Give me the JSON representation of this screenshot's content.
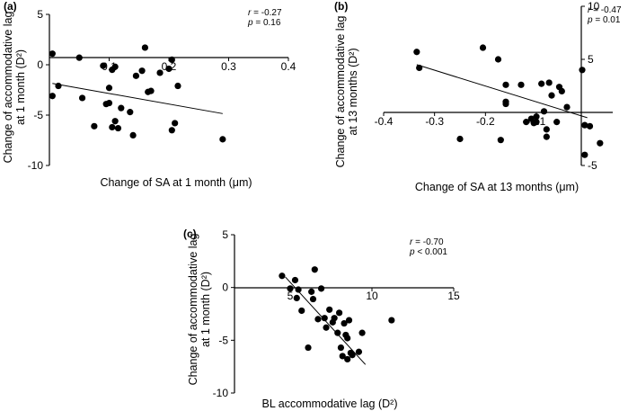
{
  "chart_data": [
    {
      "type": "scatter",
      "panel_label": "(a)",
      "xlabel": "Change of SA at 1 month (μm)",
      "ylabel_lines": [
        "Change of accommodative lag",
        "at 1 month (D²)"
      ],
      "xlim": [
        0,
        0.4
      ],
      "ylim": [
        -10,
        5
      ],
      "xticks": [
        0.1,
        0.2,
        0.3,
        0.4
      ],
      "xtick_labels": [
        "0.1",
        "0.2",
        "0.3",
        "0.4"
      ],
      "yticks": [
        5,
        0,
        -5,
        -10
      ],
      "ytick_labels": [
        "5",
        "0",
        "-5",
        "-10"
      ],
      "stats": {
        "r_label": "r",
        "r_value": " = -0.27",
        "p_label": "p",
        "p_value": " = 0.16"
      },
      "fit_line": [
        [
          0.005,
          -1.85
        ],
        [
          0.29,
          -4.85
        ]
      ],
      "points": [
        [
          0.005,
          1.1
        ],
        [
          0.005,
          -3.1
        ],
        [
          0.015,
          -2.1
        ],
        [
          0.05,
          0.7
        ],
        [
          0.055,
          -3.3
        ],
        [
          0.075,
          -6.1
        ],
        [
          0.09,
          -0.1
        ],
        [
          0.095,
          -3.9
        ],
        [
          0.1,
          -3.8
        ],
        [
          0.1,
          -2.3
        ],
        [
          0.105,
          -0.5
        ],
        [
          0.105,
          -6.2
        ],
        [
          0.11,
          -0.2
        ],
        [
          0.11,
          -5.6
        ],
        [
          0.115,
          -6.3
        ],
        [
          0.12,
          -4.3
        ],
        [
          0.135,
          -4.7
        ],
        [
          0.14,
          -7.0
        ],
        [
          0.145,
          -1.1
        ],
        [
          0.155,
          -0.6
        ],
        [
          0.16,
          1.7
        ],
        [
          0.165,
          -2.7
        ],
        [
          0.17,
          -2.6
        ],
        [
          0.185,
          -0.8
        ],
        [
          0.2,
          -0.4
        ],
        [
          0.205,
          0.5
        ],
        [
          0.205,
          -6.5
        ],
        [
          0.21,
          -5.8
        ],
        [
          0.215,
          -2.1
        ],
        [
          0.29,
          -7.4
        ]
      ]
    },
    {
      "type": "scatter",
      "panel_label": "(b)",
      "xlabel": "Change of SA at 13 months (μm)",
      "ylabel_lines": [
        "Change of accommodative lag",
        "at 13 months (D²)"
      ],
      "xlim": [
        -0.4,
        0.05
      ],
      "ylim": [
        -5,
        10
      ],
      "xticks": [
        -0.4,
        -0.3,
        -0.2,
        -0.1
      ],
      "xtick_labels": [
        "-0.4",
        "-0.3",
        "-0.2",
        "-0.1"
      ],
      "yticks": [
        10,
        5,
        -5
      ],
      "ytick_labels": [
        "10",
        "5",
        "-5"
      ],
      "stats": {
        "r_label": "r",
        "r_value": " = -0.47",
        "p_label": "p",
        "p_value": " = 0.01"
      },
      "fit_line": [
        [
          -0.335,
          4.5
        ],
        [
          0.0,
          -0.5
        ]
      ],
      "points": [
        [
          -0.335,
          5.7
        ],
        [
          -0.33,
          4.2
        ],
        [
          -0.25,
          -2.5
        ],
        [
          -0.205,
          6.1
        ],
        [
          -0.175,
          5.0
        ],
        [
          -0.17,
          -2.6
        ],
        [
          -0.16,
          0.8
        ],
        [
          -0.16,
          1.0
        ],
        [
          -0.16,
          2.6
        ],
        [
          -0.13,
          2.6
        ],
        [
          -0.12,
          -0.9
        ],
        [
          -0.11,
          -0.6
        ],
        [
          -0.105,
          -1.0
        ],
        [
          -0.1,
          -0.9
        ],
        [
          -0.1,
          -0.4
        ],
        [
          -0.09,
          2.7
        ],
        [
          -0.085,
          0.1
        ],
        [
          -0.08,
          -2.3
        ],
        [
          -0.08,
          -1.6
        ],
        [
          -0.075,
          2.8
        ],
        [
          -0.07,
          1.6
        ],
        [
          -0.06,
          -0.9
        ],
        [
          -0.055,
          2.4
        ],
        [
          -0.05,
          2.0
        ],
        [
          -0.04,
          0.5
        ],
        [
          -0.01,
          4.0
        ],
        [
          -0.005,
          -1.2
        ],
        [
          -0.005,
          -4.0
        ],
        [
          0.005,
          -1.3
        ],
        [
          0.025,
          -2.9
        ]
      ]
    },
    {
      "type": "scatter",
      "panel_label": "(c)",
      "xlabel": "BL accommodative lag (D²)",
      "ylabel_lines": [
        "Change of accommodative lag",
        "at 1 month  (D²)"
      ],
      "xlim": [
        0,
        15
      ],
      "ylim": [
        -10,
        5
      ],
      "xticks": [
        5,
        10,
        15
      ],
      "xtick_labels": [
        "5",
        "10",
        "15"
      ],
      "yticks": [
        5,
        0,
        -5,
        -10
      ],
      "ytick_labels": [
        "5",
        "0",
        "-5",
        "-10"
      ],
      "stats": {
        "r_label": "r",
        "r_value": " = -0.70",
        "p_label": "p",
        "p_value": " < 0.001"
      },
      "fit_line": [
        [
          4.7,
          1.0
        ],
        [
          9.6,
          -7.3
        ]
      ],
      "points": [
        [
          4.5,
          1.1
        ],
        [
          5.0,
          -0.1
        ],
        [
          5.3,
          0.7
        ],
        [
          5.4,
          -1.0
        ],
        [
          5.5,
          -0.2
        ],
        [
          5.7,
          -2.2
        ],
        [
          6.1,
          -5.7
        ],
        [
          6.3,
          -0.4
        ],
        [
          6.4,
          -1.1
        ],
        [
          6.5,
          1.7
        ],
        [
          6.7,
          -3.0
        ],
        [
          6.9,
          -0.1
        ],
        [
          7.1,
          -2.9
        ],
        [
          7.2,
          -3.8
        ],
        [
          7.4,
          -2.1
        ],
        [
          7.6,
          -3.3
        ],
        [
          7.7,
          -2.9
        ],
        [
          7.9,
          -4.3
        ],
        [
          8.0,
          -2.4
        ],
        [
          8.1,
          -5.7
        ],
        [
          8.2,
          -6.5
        ],
        [
          8.3,
          -3.4
        ],
        [
          8.4,
          -4.5
        ],
        [
          8.5,
          -4.8
        ],
        [
          8.5,
          -6.8
        ],
        [
          8.6,
          -3.1
        ],
        [
          8.7,
          -6.2
        ],
        [
          8.8,
          -6.4
        ],
        [
          9.2,
          -6.1
        ],
        [
          9.4,
          -4.3
        ],
        [
          11.2,
          -3.1
        ]
      ]
    }
  ]
}
